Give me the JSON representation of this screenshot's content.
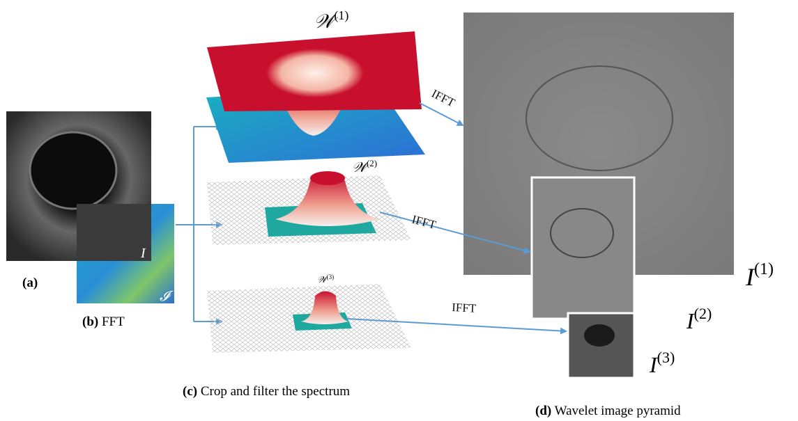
{
  "panels": {
    "a": {
      "tag": "(a)"
    },
    "b": {
      "tag": "(b)",
      "caption": "FFT"
    },
    "c": {
      "tag": "(c)",
      "caption": "Crop and filter the spectrum"
    },
    "d": {
      "tag": "(d)",
      "caption": "Wavelet image pyramid"
    }
  },
  "symbols": {
    "image": "I",
    "spectrum": "𝓘"
  },
  "filters": [
    {
      "symbol": "𝒲",
      "index": "(1)"
    },
    {
      "symbol": "𝒲",
      "index": "(2)"
    },
    {
      "symbol": "𝒲",
      "index": "(3)"
    }
  ],
  "arrows": [
    "IFFT",
    "IFFT",
    "IFFT"
  ],
  "pyramid": [
    {
      "symbol": "I",
      "index": "(1)"
    },
    {
      "symbol": "I",
      "index": "(2)"
    },
    {
      "symbol": "I",
      "index": "(3)"
    }
  ]
}
